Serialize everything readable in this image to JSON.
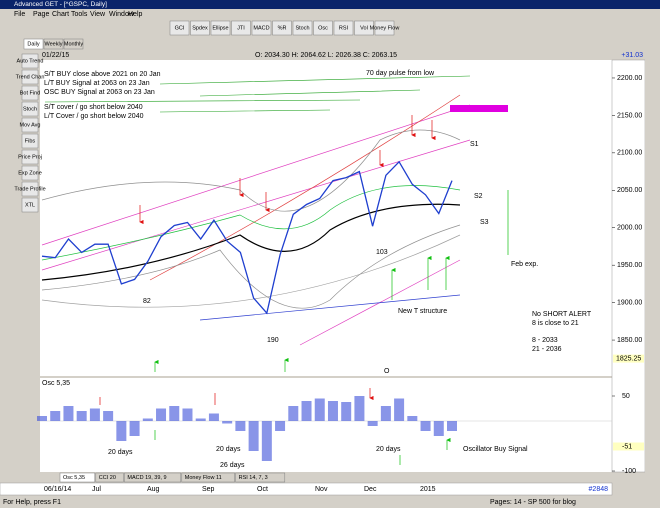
{
  "window_title": "Advanced GET - [^GSPC, Daily]",
  "menu": [
    "File",
    "Page",
    "Chart",
    "Tools",
    "View",
    "Window",
    "Help"
  ],
  "toolbar": [
    "GCI",
    "Spdex",
    "Ellipse",
    "JTI",
    "MACD",
    "%R",
    "Stoch",
    "Osc",
    "RSI",
    "Vol",
    "Money Flow"
  ],
  "timeframes": [
    "Daily",
    "Weekly",
    "Monthly"
  ],
  "tools": [
    "Auto Trend",
    "Trend Chan",
    "Bot Find",
    "Stoch",
    "Mov Avg",
    "Fibs",
    "Price Proj",
    "Exp Zone",
    "Trade Profile",
    "XTL"
  ],
  "chart_data": {
    "type": "line",
    "date": "01/22/15",
    "ohlc": "O: 2034.30   H: 2064.62   L: 2026.38   C: 2063.15",
    "change": "+31.03",
    "date_axis": [
      "06/16/14",
      "Jul",
      "Aug",
      "Sep",
      "Oct",
      "Nov",
      "Dec",
      "2015"
    ],
    "values": [
      1962,
      1960,
      1985,
      1967,
      1978,
      1978,
      1925,
      1931,
      1955,
      1988,
      2003,
      2007,
      1985,
      2010,
      1982,
      1967,
      1906,
      1886,
      1964,
      2018,
      2031,
      2039,
      2063,
      2067,
      2075,
      2002,
      2070,
      2088,
      2058,
      2044,
      2019,
      2063
    ],
    "color": "#1f3fcf",
    "ylim": [
      1802,
      2224
    ],
    "yticks": [
      {
        "value": 2200,
        "label": "2200.00"
      },
      {
        "value": 2150,
        "label": "2150.00"
      },
      {
        "value": 2100,
        "label": "2100.00"
      },
      {
        "value": 2050,
        "label": "2050.00"
      },
      {
        "value": 2000,
        "label": "2000.00"
      },
      {
        "value": 1950,
        "label": "1950.00"
      },
      {
        "value": 1900,
        "label": "1900.00"
      },
      {
        "value": 1850,
        "label": "1850.00"
      }
    ],
    "cursor_price": {
      "value": 1825.25,
      "label": "1825.25"
    },
    "annotations": [
      "S/T BUY close above 2021 on 20 Jan",
      "L/T BUY Signal at 2063 on 23 Jan",
      "OSC BUY Signal at 2063 on 23 Jan",
      "S/T cover / go short below 2040",
      "L/T Cover / go short below 2040",
      "70 day pulse from low",
      "S1",
      "S2",
      "S3",
      "103",
      "82",
      "190",
      "Feb exp.",
      "New T structure",
      "No SHORT ALERT",
      "8 is close to 21",
      "8  - 2033",
      "21 - 2036",
      "O"
    ],
    "record": "#2848"
  },
  "oscillator": {
    "type": "bar",
    "title": "Osc 5,35",
    "values": [
      10,
      20,
      30,
      20,
      25,
      20,
      -40,
      -30,
      5,
      25,
      30,
      25,
      5,
      15,
      -5,
      -20,
      -60,
      -80,
      -20,
      30,
      40,
      45,
      40,
      38,
      50,
      -10,
      30,
      45,
      10,
      -20,
      -30,
      -20
    ],
    "color": "#3a4fd8",
    "ylim": [
      -102,
      86
    ],
    "yticks": [
      50,
      -100
    ],
    "current": -51,
    "annotations": [
      "20 days",
      "20 days",
      "26 days",
      "20 days",
      "Oscillator Buy Signal"
    ]
  },
  "tabs": [
    "Osc 5,35",
    "CCI 20",
    "MACD 19, 39, 9",
    "Money Flow 11",
    "RSI 14, 7, 3"
  ],
  "status": {
    "help": "For Help, press F1",
    "pages": "Pages: 14 - SP 500 for blog"
  }
}
